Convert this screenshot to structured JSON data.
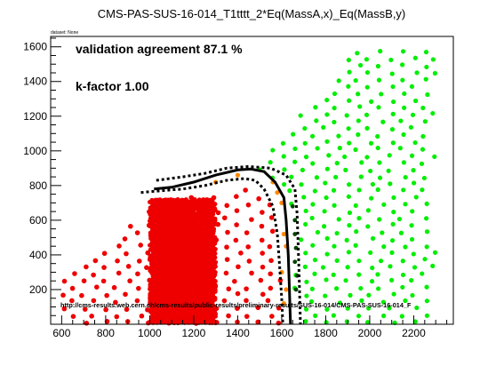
{
  "chart_data": {
    "type": "scatter",
    "title": "CMS-PAS-SUS-16-014_T1tttt_2*Eq(MassA,x)_Eq(MassB,y)",
    "small_label": "dataset: None",
    "annotations": {
      "agreement": "validation agreement 87.1 %",
      "kfactor": "k-factor 1.00",
      "url": "http://cms-results.web.cern.ch/cms-results/public-results/preliminary-results/SUS-16-014/CMS-PAS-SUS-16-014_F"
    },
    "xlim": [
      550,
      2380
    ],
    "ylim": [
      0,
      1660
    ],
    "x_ticks": [
      "600",
      "800",
      "1000",
      "1200",
      "1400",
      "1600",
      "1800",
      "2000",
      "2200"
    ],
    "y_ticks": [
      "200",
      "400",
      "600",
      "800",
      "1000",
      "1200",
      "1400",
      "1600"
    ],
    "grid": false,
    "colors": {
      "excluded": "#ee0000",
      "allowed": "#00ee00",
      "disagree_excluded": "#ff8800",
      "disagree_allowed": "#004400",
      "contour": "#000000"
    },
    "point_regions": {
      "excluded": [
        [
          600,
          0
        ],
        [
          600,
          270
        ],
        [
          1050,
          710
        ],
        [
          1500,
          800
        ],
        [
          1560,
          700
        ],
        [
          1590,
          500
        ],
        [
          1600,
          0
        ]
      ],
      "dense_excluded": [
        [
          1000,
          0
        ],
        [
          1000,
          720
        ],
        [
          1300,
          720
        ],
        [
          1300,
          0
        ]
      ],
      "allowed": [
        [
          1450,
          850
        ],
        [
          1950,
          1600
        ],
        [
          2300,
          1600
        ],
        [
          2300,
          0
        ],
        [
          1650,
          0
        ],
        [
          1660,
          600
        ],
        [
          1620,
          780
        ]
      ],
      "y_step": 40,
      "x_step": 25
    },
    "contour_observed": [
      [
        1020,
        780
      ],
      [
        1100,
        790
      ],
      [
        1200,
        820
      ],
      [
        1300,
        860
      ],
      [
        1400,
        890
      ],
      [
        1460,
        895
      ],
      [
        1520,
        880
      ],
      [
        1570,
        820
      ],
      [
        1610,
        730
      ],
      [
        1620,
        600
      ],
      [
        1630,
        400
      ],
      [
        1635,
        200
      ],
      [
        1640,
        0
      ]
    ],
    "contour_expected_upper": [
      [
        1030,
        830
      ],
      [
        1150,
        850
      ],
      [
        1250,
        870
      ],
      [
        1350,
        900
      ],
      [
        1450,
        910
      ],
      [
        1550,
        900
      ],
      [
        1620,
        860
      ],
      [
        1660,
        780
      ],
      [
        1670,
        640
      ],
      [
        1675,
        450
      ],
      [
        1680,
        250
      ],
      [
        1685,
        0
      ]
    ],
    "contour_expected_lower": [
      [
        960,
        760
      ],
      [
        1050,
        770
      ],
      [
        1150,
        780
      ],
      [
        1250,
        800
      ],
      [
        1350,
        830
      ],
      [
        1430,
        840
      ],
      [
        1480,
        830
      ],
      [
        1520,
        780
      ],
      [
        1560,
        680
      ],
      [
        1580,
        520
      ],
      [
        1590,
        350
      ],
      [
        1600,
        150
      ],
      [
        1605,
        0
      ]
    ]
  }
}
